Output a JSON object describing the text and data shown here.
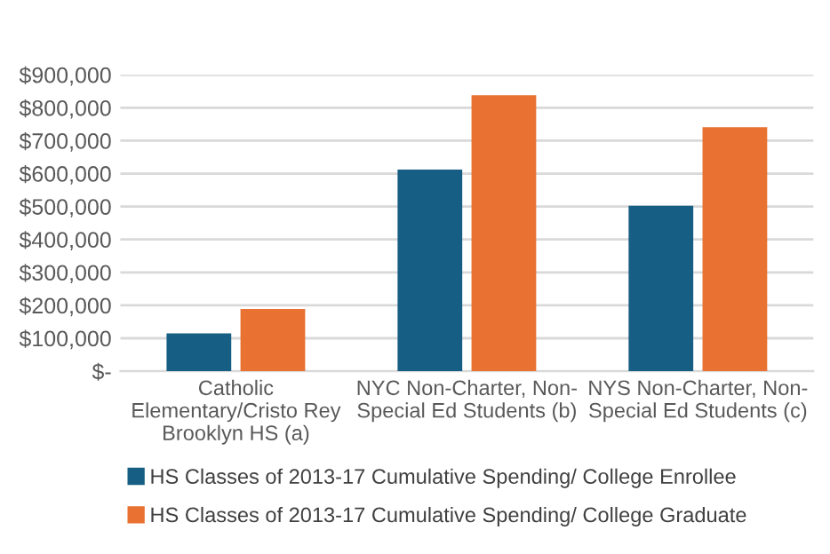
{
  "chart_data": {
    "type": "bar",
    "categories": [
      "Catholic\nElementary/Cristo Rey\nBrooklyn HS (a)",
      "NYC Non-Charter, Non-\nSpecial Ed Students (b)",
      "NYS Non-Charter, Non-\nSpecial Ed Students (c)"
    ],
    "series": [
      {
        "name": "HS Classes of 2013-17 Cumulative Spending/ College Enrollee",
        "color": "#165e83",
        "values": [
          115000,
          612000,
          502000
        ]
      },
      {
        "name": "HS Classes of 2013-17 Cumulative Spending/ College Graduate",
        "color": "#e97132",
        "values": [
          189000,
          838000,
          741000
        ]
      }
    ],
    "ylim": [
      0,
      900000
    ],
    "yticks": [
      {
        "value": 0,
        "label": "$-"
      },
      {
        "value": 100000,
        "label": "$100,000"
      },
      {
        "value": 200000,
        "label": "$200,000"
      },
      {
        "value": 300000,
        "label": "$300,000"
      },
      {
        "value": 400000,
        "label": "$400,000"
      },
      {
        "value": 500000,
        "label": "$500,000"
      },
      {
        "value": 600000,
        "label": "$600,000"
      },
      {
        "value": 700000,
        "label": "$700,000"
      },
      {
        "value": 800000,
        "label": "$800,000"
      },
      {
        "value": 900000,
        "label": "$900,000"
      }
    ],
    "grid": "y",
    "legend": "bottom"
  }
}
